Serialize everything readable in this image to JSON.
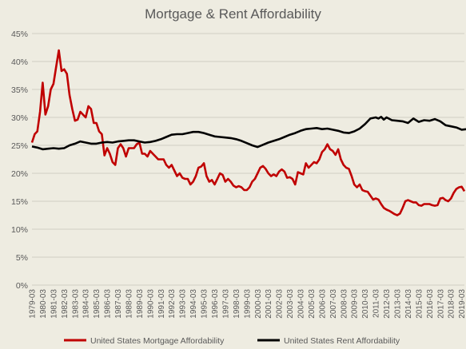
{
  "chart_data": {
    "type": "line",
    "title": "Mortgage & Rent Affordability",
    "xlabel": "",
    "ylabel": "",
    "ylim": [
      0,
      45
    ],
    "yticks": [
      "0%",
      "5%",
      "10%",
      "15%",
      "20%",
      "25%",
      "30%",
      "35%",
      "40%",
      "45%"
    ],
    "grid": "horizontal",
    "legend_position": "bottom",
    "x_tick_labels": [
      "1979-03",
      "1980-03",
      "1981-03",
      "1982-03",
      "1983-03",
      "1984-03",
      "1985-03",
      "1986-03",
      "1987-03",
      "1988-03",
      "1989-03",
      "1990-03",
      "1991-03",
      "1992-03",
      "1993-03",
      "1994-03",
      "1995-03",
      "1996-03",
      "1997-03",
      "1998-03",
      "1999-03",
      "2000-03",
      "2001-03",
      "2002-03",
      "2003-03",
      "2004-03",
      "2005-03",
      "2006-03",
      "2007-03",
      "2008-03",
      "2009-03",
      "2010-03",
      "2011-03",
      "2012-03",
      "2013-03",
      "2014-03",
      "2015-03",
      "2016-03",
      "2017-03",
      "2018-03",
      "2019-03"
    ],
    "series": [
      {
        "name": "United States Mortgage Affordability",
        "color": "#c00000",
        "points": [
          [
            1979.0,
            25.5
          ],
          [
            1979.25,
            27
          ],
          [
            1979.5,
            27.5
          ],
          [
            1979.75,
            31
          ],
          [
            1980.0,
            36.2
          ],
          [
            1980.25,
            30.5
          ],
          [
            1980.5,
            32
          ],
          [
            1980.75,
            35
          ],
          [
            1981.0,
            36
          ],
          [
            1981.25,
            39
          ],
          [
            1981.5,
            42
          ],
          [
            1981.75,
            38.3
          ],
          [
            1982.0,
            38.6
          ],
          [
            1982.25,
            37.8
          ],
          [
            1982.5,
            34
          ],
          [
            1982.75,
            31.5
          ],
          [
            1983.0,
            29.4
          ],
          [
            1983.25,
            29.6
          ],
          [
            1983.5,
            31
          ],
          [
            1983.75,
            30.5
          ],
          [
            1984.0,
            30
          ],
          [
            1984.25,
            32
          ],
          [
            1984.5,
            31.5
          ],
          [
            1984.75,
            29
          ],
          [
            1985.0,
            29
          ],
          [
            1985.25,
            27.5
          ],
          [
            1985.5,
            27
          ],
          [
            1985.75,
            23.2
          ],
          [
            1986.0,
            24.5
          ],
          [
            1986.25,
            23.5
          ],
          [
            1986.5,
            22
          ],
          [
            1986.75,
            21.5
          ],
          [
            1987.0,
            24.5
          ],
          [
            1987.25,
            25.2
          ],
          [
            1987.5,
            24.5
          ],
          [
            1987.75,
            23
          ],
          [
            1988.0,
            24.5
          ],
          [
            1988.25,
            24.5
          ],
          [
            1988.5,
            24.5
          ],
          [
            1988.75,
            25.2
          ],
          [
            1989.0,
            25.5
          ],
          [
            1989.25,
            23.5
          ],
          [
            1989.5,
            23.5
          ],
          [
            1989.75,
            23
          ],
          [
            1990.0,
            24
          ],
          [
            1990.25,
            23.5
          ],
          [
            1990.5,
            23
          ],
          [
            1990.75,
            22.5
          ],
          [
            1991.0,
            22.5
          ],
          [
            1991.25,
            22.5
          ],
          [
            1991.5,
            21.5
          ],
          [
            1991.75,
            21
          ],
          [
            1992.0,
            21.5
          ],
          [
            1992.25,
            20.5
          ],
          [
            1992.5,
            19.5
          ],
          [
            1992.75,
            20
          ],
          [
            1993.0,
            19.2
          ],
          [
            1993.25,
            19
          ],
          [
            1993.5,
            19
          ],
          [
            1993.75,
            18
          ],
          [
            1994.0,
            18.5
          ],
          [
            1994.25,
            19.5
          ],
          [
            1994.5,
            21
          ],
          [
            1994.75,
            21.2
          ],
          [
            1995.0,
            21.8
          ],
          [
            1995.25,
            19.5
          ],
          [
            1995.5,
            18.5
          ],
          [
            1995.75,
            18.8
          ],
          [
            1996.0,
            18
          ],
          [
            1996.25,
            19
          ],
          [
            1996.5,
            20
          ],
          [
            1996.75,
            19.7
          ],
          [
            1997.0,
            18.5
          ],
          [
            1997.25,
            19
          ],
          [
            1997.5,
            18.5
          ],
          [
            1997.75,
            17.8
          ],
          [
            1998.0,
            17.5
          ],
          [
            1998.25,
            17.7
          ],
          [
            1998.5,
            17.5
          ],
          [
            1998.75,
            17
          ],
          [
            1999.0,
            17
          ],
          [
            1999.25,
            17.5
          ],
          [
            1999.5,
            18.5
          ],
          [
            1999.75,
            19
          ],
          [
            2000.0,
            20
          ],
          [
            2000.25,
            21
          ],
          [
            2000.5,
            21.3
          ],
          [
            2000.75,
            20.8
          ],
          [
            2001.0,
            20
          ],
          [
            2001.25,
            19.5
          ],
          [
            2001.5,
            19.8
          ],
          [
            2001.75,
            19.5
          ],
          [
            2002.0,
            20.3
          ],
          [
            2002.25,
            20.7
          ],
          [
            2002.5,
            20.3
          ],
          [
            2002.75,
            19.2
          ],
          [
            2003.0,
            19.3
          ],
          [
            2003.25,
            19
          ],
          [
            2003.5,
            18
          ],
          [
            2003.75,
            20.2
          ],
          [
            2004.0,
            20
          ],
          [
            2004.25,
            19.8
          ],
          [
            2004.5,
            21.8
          ],
          [
            2004.75,
            21
          ],
          [
            2005.0,
            21.5
          ],
          [
            2005.25,
            22
          ],
          [
            2005.5,
            21.8
          ],
          [
            2005.75,
            22.5
          ],
          [
            2006.0,
            23.8
          ],
          [
            2006.25,
            24.3
          ],
          [
            2006.5,
            25.2
          ],
          [
            2006.75,
            24.3
          ],
          [
            2007.0,
            24
          ],
          [
            2007.25,
            23.3
          ],
          [
            2007.5,
            24.3
          ],
          [
            2007.75,
            22.5
          ],
          [
            2008.0,
            21.5
          ],
          [
            2008.25,
            21
          ],
          [
            2008.5,
            20.8
          ],
          [
            2008.75,
            19.5
          ],
          [
            2009.0,
            18
          ],
          [
            2009.25,
            17.5
          ],
          [
            2009.5,
            18
          ],
          [
            2009.75,
            17
          ],
          [
            2010.0,
            16.8
          ],
          [
            2010.25,
            16.7
          ],
          [
            2010.5,
            16
          ],
          [
            2010.75,
            15.3
          ],
          [
            2011.0,
            15.5
          ],
          [
            2011.25,
            15.3
          ],
          [
            2011.5,
            14.5
          ],
          [
            2011.75,
            13.8
          ],
          [
            2012.0,
            13.5
          ],
          [
            2012.25,
            13.3
          ],
          [
            2012.5,
            13
          ],
          [
            2012.75,
            12.7
          ],
          [
            2013.0,
            12.5
          ],
          [
            2013.25,
            12.8
          ],
          [
            2013.5,
            13.8
          ],
          [
            2013.75,
            15
          ],
          [
            2014.0,
            15.2
          ],
          [
            2014.25,
            15
          ],
          [
            2014.5,
            14.8
          ],
          [
            2014.75,
            14.8
          ],
          [
            2015.0,
            14.3
          ],
          [
            2015.25,
            14.2
          ],
          [
            2015.5,
            14.5
          ],
          [
            2015.75,
            14.5
          ],
          [
            2016.0,
            14.5
          ],
          [
            2016.25,
            14.3
          ],
          [
            2016.5,
            14.2
          ],
          [
            2016.75,
            14.3
          ],
          [
            2017.0,
            15.5
          ],
          [
            2017.25,
            15.6
          ],
          [
            2017.5,
            15.2
          ],
          [
            2017.75,
            15
          ],
          [
            2018.0,
            15.5
          ],
          [
            2018.25,
            16.5
          ],
          [
            2018.5,
            17.2
          ],
          [
            2018.75,
            17.5
          ],
          [
            2019.0,
            17.6
          ],
          [
            2019.25,
            16.8
          ]
        ]
      },
      {
        "name": "United States Rent Affordability",
        "color": "#000000",
        "points": [
          [
            1979.0,
            24.8
          ],
          [
            1979.5,
            24.6
          ],
          [
            1980.0,
            24.3
          ],
          [
            1980.5,
            24.4
          ],
          [
            1981.0,
            24.5
          ],
          [
            1981.5,
            24.4
          ],
          [
            1982.0,
            24.5
          ],
          [
            1982.5,
            25
          ],
          [
            1983.0,
            25.3
          ],
          [
            1983.5,
            25.7
          ],
          [
            1984.0,
            25.5
          ],
          [
            1984.5,
            25.3
          ],
          [
            1985.0,
            25.3
          ],
          [
            1985.5,
            25.5
          ],
          [
            1986.0,
            25.6
          ],
          [
            1986.5,
            25.5
          ],
          [
            1987.0,
            25.7
          ],
          [
            1987.5,
            25.8
          ],
          [
            1988.0,
            25.9
          ],
          [
            1988.5,
            25.9
          ],
          [
            1989.0,
            25.7
          ],
          [
            1989.5,
            25.5
          ],
          [
            1990.0,
            25.6
          ],
          [
            1990.5,
            25.8
          ],
          [
            1991.0,
            26.1
          ],
          [
            1991.5,
            26.5
          ],
          [
            1992.0,
            26.9
          ],
          [
            1992.5,
            27
          ],
          [
            1993.0,
            27
          ],
          [
            1993.5,
            27.2
          ],
          [
            1994.0,
            27.4
          ],
          [
            1994.5,
            27.4
          ],
          [
            1995.0,
            27.2
          ],
          [
            1995.5,
            26.9
          ],
          [
            1996.0,
            26.6
          ],
          [
            1996.5,
            26.5
          ],
          [
            1997.0,
            26.4
          ],
          [
            1997.5,
            26.3
          ],
          [
            1998.0,
            26.1
          ],
          [
            1998.5,
            25.8
          ],
          [
            1999.0,
            25.4
          ],
          [
            1999.5,
            25
          ],
          [
            2000.0,
            24.7
          ],
          [
            2000.5,
            25.1
          ],
          [
            2001.0,
            25.5
          ],
          [
            2001.5,
            25.8
          ],
          [
            2002.0,
            26.1
          ],
          [
            2002.5,
            26.5
          ],
          [
            2003.0,
            26.9
          ],
          [
            2003.5,
            27.2
          ],
          [
            2004.0,
            27.6
          ],
          [
            2004.5,
            27.9
          ],
          [
            2005.0,
            28
          ],
          [
            2005.5,
            28.1
          ],
          [
            2006.0,
            27.9
          ],
          [
            2006.5,
            28
          ],
          [
            2007.0,
            27.8
          ],
          [
            2007.5,
            27.6
          ],
          [
            2008.0,
            27.3
          ],
          [
            2008.5,
            27.2
          ],
          [
            2009.0,
            27.5
          ],
          [
            2009.5,
            28
          ],
          [
            2010.0,
            28.8
          ],
          [
            2010.5,
            29.8
          ],
          [
            2011.0,
            30
          ],
          [
            2011.25,
            29.8
          ],
          [
            2011.5,
            30.1
          ],
          [
            2011.75,
            29.6
          ],
          [
            2012.0,
            30
          ],
          [
            2012.5,
            29.5
          ],
          [
            2013.0,
            29.4
          ],
          [
            2013.5,
            29.3
          ],
          [
            2014.0,
            29
          ],
          [
            2014.5,
            29.8
          ],
          [
            2015.0,
            29.2
          ],
          [
            2015.5,
            29.5
          ],
          [
            2016.0,
            29.4
          ],
          [
            2016.5,
            29.7
          ],
          [
            2017.0,
            29.3
          ],
          [
            2017.5,
            28.6
          ],
          [
            2018.0,
            28.4
          ],
          [
            2018.5,
            28.2
          ],
          [
            2019.0,
            27.8
          ],
          [
            2019.5,
            27.9
          ]
        ]
      }
    ]
  }
}
